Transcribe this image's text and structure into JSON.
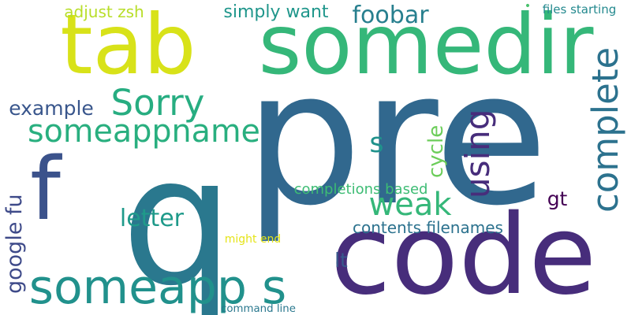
{
  "words": [
    {
      "id": "q",
      "text": "q",
      "color": "#2a788e",
      "rot": 0
    },
    {
      "id": "pre",
      "text": "pre",
      "color": "#31688e",
      "rot": 0
    },
    {
      "id": "code",
      "text": "code",
      "color": "#472d7b",
      "rot": 0
    },
    {
      "id": "tab",
      "text": "tab",
      "color": "#d8e219",
      "rot": 0
    },
    {
      "id": "somedir",
      "text": "somedir",
      "color": "#35b779",
      "rot": 0
    },
    {
      "id": "someapp_s",
      "text": "someapp s",
      "color": "#21918c",
      "rot": 0
    },
    {
      "id": "f",
      "text": "f",
      "color": "#3b528b",
      "rot": 0
    },
    {
      "id": "complete",
      "text": "complete",
      "color": "#2c728e",
      "rot": -90
    },
    {
      "id": "someappname",
      "text": "someappname",
      "color": "#29af7f",
      "rot": 0
    },
    {
      "id": "sorry",
      "text": "Sorry",
      "color": "#27ad81",
      "rot": 0
    },
    {
      "id": "weak",
      "text": "weak",
      "color": "#35b779",
      "rot": 0
    },
    {
      "id": "using",
      "text": "using",
      "color": "#472d7b",
      "rot": -90
    },
    {
      "id": "letter",
      "text": "letter",
      "color": "#1f9a8a",
      "rot": 0
    },
    {
      "id": "s",
      "text": "s",
      "color": "#20928c",
      "rot": 0
    },
    {
      "id": "foobar",
      "text": "foobar",
      "color": "#277f8e",
      "rot": 0
    },
    {
      "id": "example",
      "text": "example",
      "color": "#39568c",
      "rot": 0
    },
    {
      "id": "cycle",
      "text": "cycle",
      "color": "#6ccd5a",
      "rot": -90
    },
    {
      "id": "gt",
      "text": "gt",
      "color": "#440154",
      "rot": 0
    },
    {
      "id": "lt",
      "text": "lt",
      "color": "#38598c",
      "rot": 0
    },
    {
      "id": "google_fu",
      "text": "google fu",
      "color": "#3e4a89",
      "rot": -90
    },
    {
      "id": "simply_want",
      "text": "simply want",
      "color": "#1f968b",
      "rot": 0
    },
    {
      "id": "adjust_zsh",
      "text": "adjust zsh",
      "color": "#b8de29",
      "rot": 0
    },
    {
      "id": "contents_filenames",
      "text": "contents filenames",
      "color": "#2c728e",
      "rot": 0
    },
    {
      "id": "completions_based",
      "text": "completions based",
      "color": "#3dbc74",
      "rot": 0
    },
    {
      "id": "files_starting",
      "text": "files starting",
      "color": "#23898e",
      "rot": 0
    },
    {
      "id": "might_end",
      "text": "might end",
      "color": "#e5e419",
      "rot": 0
    },
    {
      "id": "command_line",
      "text": "command line",
      "color": "#2a788e",
      "rot": 0
    },
    {
      "id": "dot",
      "text": "•",
      "color": "#4ac16d",
      "rot": 0
    }
  ]
}
